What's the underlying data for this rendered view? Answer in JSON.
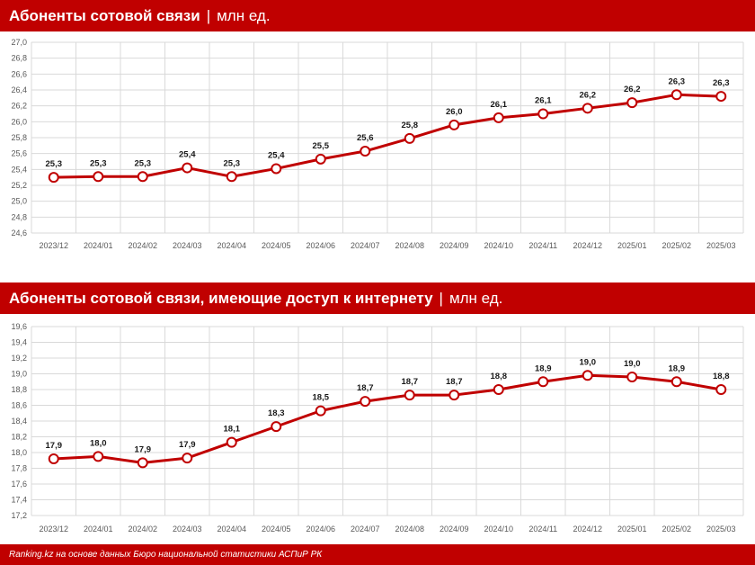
{
  "footer": "Ranking.kz на основе данных Бюро национальной статистики АСПиР РК",
  "chart_data": [
    {
      "type": "line",
      "title": "Абоненты сотовой связи",
      "unit": "млн ед.",
      "categories": [
        "2023/12",
        "2024/01",
        "2024/02",
        "2024/03",
        "2024/04",
        "2024/05",
        "2024/06",
        "2024/07",
        "2024/08",
        "2024/09",
        "2024/10",
        "2024/11",
        "2024/12",
        "2025/01",
        "2025/02",
        "2025/03"
      ],
      "values": [
        25.3,
        25.31,
        25.31,
        25.42,
        25.31,
        25.41,
        25.53,
        25.63,
        25.79,
        25.96,
        26.05,
        26.1,
        26.17,
        26.24,
        26.34,
        26.32
      ],
      "labels": [
        "25,3",
        "25,3",
        "25,3",
        "25,4",
        "25,3",
        "25,4",
        "25,5",
        "25,6",
        "25,8",
        "26,0",
        "26,1",
        "26,1",
        "26,2",
        "26,2",
        "26,3",
        "26,3"
      ],
      "ylim": [
        24.6,
        27.0
      ],
      "ystep": 0.2,
      "grid": true,
      "color": "#c00000"
    },
    {
      "type": "line",
      "title": "Абоненты сотовой связи, имеющие доступ к интернету",
      "unit": "млн ед.",
      "categories": [
        "2023/12",
        "2024/01",
        "2024/02",
        "2024/03",
        "2024/04",
        "2024/05",
        "2024/06",
        "2024/07",
        "2024/08",
        "2024/09",
        "2024/10",
        "2024/11",
        "2024/12",
        "2025/01",
        "2025/02",
        "2025/03"
      ],
      "values": [
        17.92,
        17.95,
        17.87,
        17.93,
        18.13,
        18.33,
        18.53,
        18.65,
        18.73,
        18.73,
        18.8,
        18.9,
        18.98,
        18.96,
        18.9,
        18.8
      ],
      "labels": [
        "17,9",
        "18,0",
        "17,9",
        "17,9",
        "18,1",
        "18,3",
        "18,5",
        "18,7",
        "18,7",
        "18,7",
        "18,8",
        "18,9",
        "19,0",
        "19,0",
        "18,9",
        "18,8"
      ],
      "ylim": [
        17.2,
        19.6
      ],
      "ystep": 0.2,
      "grid": true,
      "color": "#c00000"
    }
  ]
}
